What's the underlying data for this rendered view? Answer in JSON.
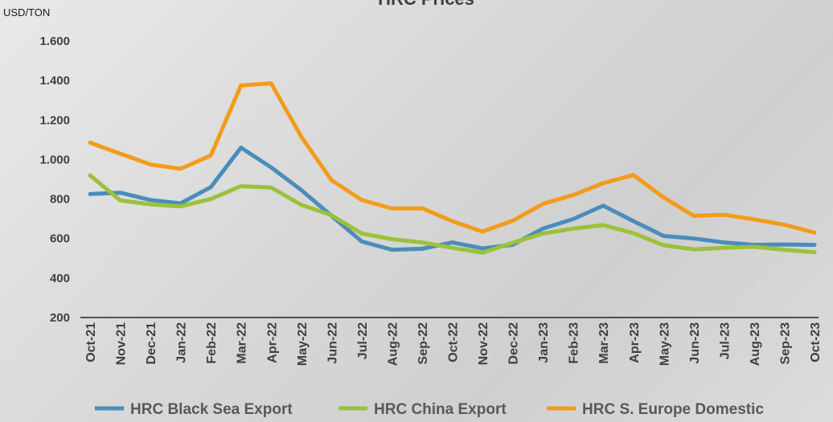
{
  "chart_data": {
    "type": "line",
    "title": "HRC Prices",
    "ylabel": "USD/TON",
    "xlabel": "",
    "ylim": [
      200,
      1600
    ],
    "yticks": [
      "200",
      "400",
      "600",
      "800",
      "1.000",
      "1.200",
      "1.400",
      "1.600"
    ],
    "ytick_values": [
      200,
      400,
      600,
      800,
      1000,
      1200,
      1400,
      1600
    ],
    "grid": false,
    "legend_position": "bottom",
    "categories": [
      "Oct-21",
      "Nov-21",
      "Dec-21",
      "Jan-22",
      "Feb-22",
      "Mar-22",
      "Apr-22",
      "May-22",
      "Jun-22",
      "Jul-22",
      "Aug-22",
      "Sep-22",
      "Oct-22",
      "Nov-22",
      "Dec-22",
      "Jan-23",
      "Feb-23",
      "Mar-23",
      "Apr-23",
      "May-23",
      "Jun-23",
      "Jul-23",
      "Aug-23",
      "Sep-23",
      "Oct-23"
    ],
    "series": [
      {
        "name": "HRC Black Sea Export",
        "color": "#4a8dbb",
        "values": [
          825,
          832,
          795,
          778,
          860,
          1060,
          960,
          845,
          715,
          585,
          543,
          548,
          580,
          550,
          568,
          650,
          698,
          766,
          688,
          613,
          600,
          580,
          568,
          570,
          568
        ]
      },
      {
        "name": "HRC China Export",
        "color": "#9cc13a",
        "values": [
          920,
          793,
          773,
          763,
          800,
          865,
          858,
          770,
          718,
          625,
          597,
          580,
          553,
          528,
          578,
          625,
          650,
          668,
          627,
          566,
          545,
          553,
          558,
          543,
          530
        ]
      },
      {
        "name": "HRC S. Europe Domestic",
        "color": "#f39c1b",
        "values": [
          1085,
          1030,
          975,
          953,
          1020,
          1375,
          1385,
          1115,
          895,
          795,
          752,
          753,
          688,
          635,
          690,
          775,
          820,
          880,
          922,
          808,
          715,
          720,
          697,
          670,
          630
        ]
      }
    ]
  }
}
